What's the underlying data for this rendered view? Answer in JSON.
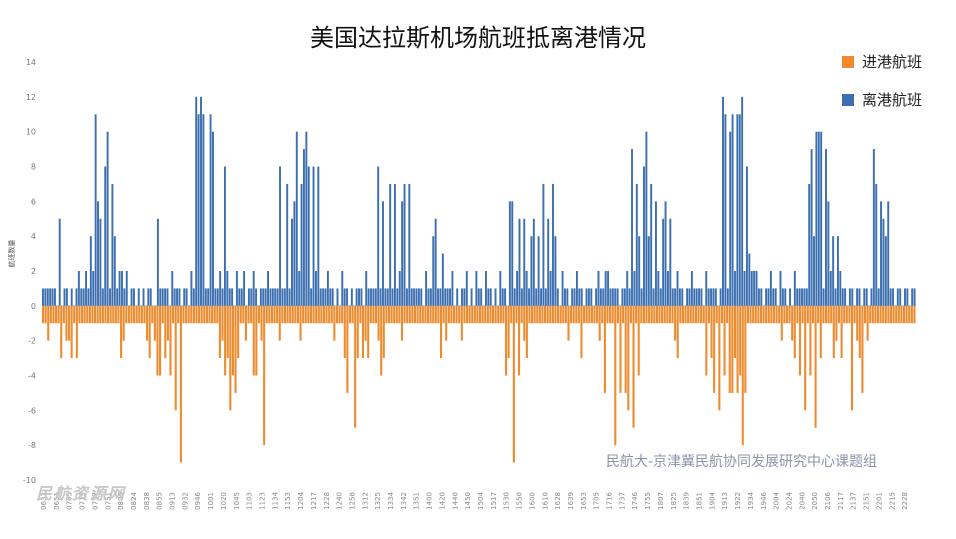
{
  "chart_data": {
    "type": "bar",
    "title": "美国达拉斯机场航班抵离港情况",
    "ylabel": "航班数量",
    "ylim": [
      -10,
      14
    ],
    "y_ticks": [
      -10,
      -8,
      -6,
      -4,
      -2,
      0,
      2,
      4,
      6,
      8,
      10,
      12,
      14
    ],
    "x_tick_labels": [
      "0632",
      "0651",
      "0705",
      "0719",
      "0737",
      "0751",
      "0805",
      "0824",
      "0838",
      "0855",
      "0913",
      "0932",
      "0946",
      "1001",
      "1020",
      "1045",
      "1103",
      "1123",
      "1134",
      "1153",
      "1204",
      "1217",
      "1228",
      "1240",
      "1258",
      "1312",
      "1325",
      "1334",
      "1342",
      "1351",
      "1400",
      "1420",
      "1440",
      "1450",
      "1504",
      "1517",
      "1530",
      "1550",
      "1600",
      "1610",
      "1628",
      "1639",
      "1653",
      "1705",
      "1716",
      "1737",
      "1746",
      "1755",
      "1807",
      "1825",
      "1839",
      "1851",
      "1904",
      "1913",
      "1922",
      "1934",
      "1946",
      "2004",
      "2024",
      "2040",
      "2050",
      "2106",
      "2117",
      "2137",
      "2151",
      "2201",
      "2215",
      "2228"
    ],
    "series": [
      {
        "name": "进港航班",
        "color": "#ed8b2e",
        "values": [
          -1,
          -1,
          -2,
          -1,
          -1,
          -1,
          -1,
          -3,
          -1,
          -2,
          -2,
          -3,
          -1,
          -3,
          -1,
          -1,
          -1,
          -1,
          -1,
          -1,
          -1,
          -1,
          -1,
          -1,
          -1,
          -1,
          -1,
          -1,
          -1,
          -1,
          -3,
          -2,
          -1,
          -1,
          -1,
          -1,
          -1,
          -1,
          -1,
          -1,
          -2,
          -3,
          -1,
          -2,
          -4,
          -4,
          -1,
          -3,
          -2,
          -4,
          -1,
          -6,
          -1,
          -9,
          -1,
          -1,
          -1,
          -1,
          -1,
          -1,
          -1,
          -1,
          -1,
          -1,
          -1,
          -1,
          -1,
          -1,
          -3,
          -2,
          -4,
          -3,
          -6,
          -4,
          -5,
          -3,
          -1,
          -1,
          -2,
          -1,
          -1,
          -4,
          -4,
          -1,
          -2,
          -8,
          -1,
          -1,
          -1,
          -1,
          -1,
          -2,
          -1,
          -1,
          -1,
          -1,
          -1,
          -1,
          -1,
          -2,
          -1,
          -1,
          -1,
          -1,
          -1,
          -1,
          -1,
          -1,
          -1,
          -1,
          -1,
          -1,
          -2,
          -1,
          -1,
          -1,
          -3,
          -5,
          -1,
          -1,
          -7,
          -3,
          -1,
          -3,
          -2,
          -3,
          -1,
          -1,
          -1,
          -2,
          -4,
          -3,
          -1,
          -1,
          -1,
          -1,
          -1,
          -1,
          -2,
          -1,
          -1,
          -1,
          -1,
          -1,
          -1,
          -1,
          -1,
          -1,
          -1,
          -1,
          -1,
          -1,
          -1,
          -3,
          -1,
          -2,
          -1,
          -1,
          -1,
          -1,
          -1,
          -2,
          -1,
          -1,
          -1,
          -1,
          -1,
          -1,
          -1,
          -1,
          -1,
          -1,
          -1,
          -1,
          -1,
          -1,
          -1,
          -1,
          -4,
          -3,
          -1,
          -9,
          -1,
          -4,
          -1,
          -2,
          -3,
          -1,
          -1,
          -1,
          -1,
          -1,
          -1,
          -1,
          -1,
          -1,
          -1,
          -1,
          -1,
          -1,
          -1,
          -1,
          -2,
          -1,
          -1,
          -1,
          -1,
          -3,
          -1,
          -1,
          -1,
          -1,
          -1,
          -1,
          -2,
          -1,
          -5,
          -1,
          -1,
          -1,
          -8,
          -1,
          -5,
          -1,
          -5,
          -6,
          -1,
          -7,
          -1,
          -4,
          -1,
          -1,
          -1,
          -1,
          -1,
          -1,
          -1,
          -1,
          -1,
          -1,
          -1,
          -1,
          -1,
          -2,
          -3,
          -1,
          -1,
          -1,
          -1,
          -1,
          -1,
          -1,
          -1,
          -1,
          -1,
          -4,
          -1,
          -3,
          -5,
          -1,
          -6,
          -1,
          -4,
          -1,
          -5,
          -5,
          -3,
          -5,
          -4,
          -8,
          -5,
          -1,
          -1,
          -1,
          -1,
          -1,
          -1,
          -1,
          -1,
          -1,
          -1,
          -1,
          -1,
          -1,
          -2,
          -1,
          -1,
          -1,
          -2,
          -3,
          -1,
          -4,
          -1,
          -6,
          -1,
          -4,
          -1,
          -7,
          -1,
          -3,
          -1,
          -1,
          -1,
          -1,
          -3,
          -2,
          -1,
          -3,
          -1,
          -1,
          -1,
          -6,
          -1,
          -2,
          -3,
          -5,
          -1,
          -2,
          -1,
          -1,
          -1,
          -1,
          -1,
          -1,
          -1,
          -1,
          -1,
          -1,
          -1,
          -1,
          -1,
          -1,
          -1,
          -1,
          -1,
          -1
        ]
      },
      {
        "name": "离港航班",
        "color": "#3c6fb0",
        "values": [
          1,
          1,
          1,
          1,
          1,
          1,
          0,
          5,
          0,
          1,
          1,
          0,
          1,
          0,
          1,
          2,
          1,
          1,
          2,
          1,
          4,
          2,
          11,
          6,
          5,
          1,
          8,
          10,
          1,
          7,
          4,
          1,
          2,
          2,
          1,
          2,
          0,
          1,
          1,
          0,
          1,
          0,
          1,
          0,
          1,
          1,
          0,
          0,
          5,
          1,
          1,
          1,
          1,
          0,
          2,
          1,
          1,
          1,
          0,
          1,
          1,
          0,
          2,
          1,
          12,
          11,
          12,
          11,
          1,
          1,
          11,
          10,
          1,
          1,
          2,
          1,
          8,
          2,
          1,
          1,
          0,
          2,
          1,
          1,
          2,
          0,
          1,
          1,
          2,
          1,
          0,
          1,
          1,
          1,
          2,
          1,
          1,
          1,
          1,
          8,
          1,
          1,
          7,
          1,
          5,
          6,
          10,
          2,
          7,
          9,
          10,
          8,
          1,
          8,
          2,
          8,
          1,
          1,
          1,
          2,
          1,
          1,
          0,
          1,
          0,
          2,
          1,
          1,
          0,
          1,
          0,
          1,
          1,
          1,
          0,
          2,
          1,
          1,
          1,
          1,
          8,
          1,
          6,
          1,
          1,
          7,
          1,
          7,
          1,
          2,
          6,
          7,
          1,
          7,
          1,
          1,
          1,
          1,
          1,
          0,
          2,
          1,
          1,
          4,
          5,
          1,
          1,
          3,
          1,
          1,
          1,
          2,
          0,
          1,
          0,
          1,
          1,
          2,
          0,
          1,
          0,
          2,
          1,
          1,
          0,
          2,
          1,
          1,
          0,
          1,
          0,
          2,
          1,
          1,
          0,
          6,
          6,
          1,
          2,
          5,
          1,
          5,
          2,
          1,
          4,
          5,
          1,
          4,
          1,
          7,
          1,
          5,
          2,
          7,
          4,
          1,
          0,
          2,
          1,
          1,
          0,
          1,
          1,
          2,
          1,
          1,
          0,
          1,
          1,
          1,
          0,
          1,
          2,
          1,
          1,
          2,
          2,
          1,
          1,
          1,
          1,
          0,
          1,
          1,
          2,
          1,
          9,
          2,
          7,
          4,
          1,
          8,
          10,
          4,
          7,
          1,
          6,
          2,
          1,
          5,
          6,
          2,
          5,
          1,
          1,
          2,
          1,
          1,
          0,
          1,
          1,
          2,
          1,
          1,
          1,
          1,
          0,
          2,
          1,
          1,
          1,
          1,
          0,
          1,
          12,
          11,
          1,
          10,
          11,
          2,
          11,
          11,
          12,
          2,
          8,
          3,
          2,
          2,
          2,
          1,
          1,
          0,
          1,
          1,
          2,
          1,
          1,
          0,
          2,
          1,
          1,
          0,
          1,
          0,
          2,
          1,
          1,
          1,
          1,
          1,
          7,
          9,
          4,
          10,
          10,
          10,
          1,
          9,
          6,
          2,
          4,
          1,
          4,
          2,
          1,
          1,
          0,
          1,
          1,
          0,
          1,
          1,
          0,
          1,
          1,
          0,
          1,
          9,
          7,
          1,
          6,
          5,
          4,
          6,
          1,
          1,
          0,
          1,
          1,
          0,
          1,
          1,
          0,
          1,
          1
        ]
      }
    ],
    "legend_position": "top-right",
    "grid": false,
    "annotation": "民航大-京津冀民航协同发展研究中心课题组",
    "watermark": "民航资源网"
  }
}
